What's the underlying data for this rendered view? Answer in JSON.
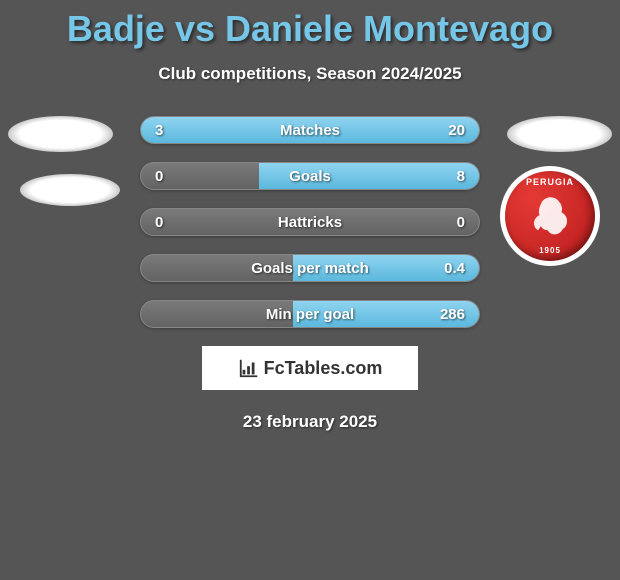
{
  "title": "Badje vs Daniele Montevago",
  "subtitle": "Club competitions, Season 2024/2025",
  "crest": {
    "top_text": "PERUGIA",
    "bottom_text": "1905",
    "fill": "#c62828",
    "border": "#ffffff"
  },
  "bars": [
    {
      "label": "Matches",
      "left": "3",
      "right": "20",
      "lw": 13,
      "rw": 87
    },
    {
      "label": "Goals",
      "left": "0",
      "right": "8",
      "lw": 0,
      "rw": 65
    },
    {
      "label": "Hattricks",
      "left": "0",
      "right": "0",
      "lw": 0,
      "rw": 0
    },
    {
      "label": "Goals per match",
      "left": "",
      "right": "0.4",
      "lw": 0,
      "rw": 55
    },
    {
      "label": "Min per goal",
      "left": "",
      "right": "286",
      "lw": 0,
      "rw": 55
    }
  ],
  "brand": "FcTables.com",
  "date": "23 february 2025",
  "colors": {
    "bg": "#555555",
    "title": "#76c6e8",
    "text": "#ffffff",
    "bar_bg": "#6f6f6f",
    "bar_fill": "#6fc4e3",
    "bar_border": "#878787"
  }
}
